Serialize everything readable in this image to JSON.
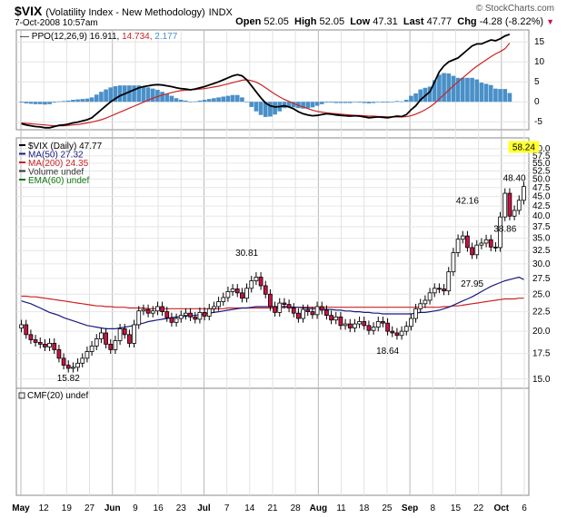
{
  "header": {
    "symbol": "$VIX",
    "name": "(Volatility Index - New Methodology)",
    "exchange": "INDX",
    "date": "7-Oct-2008 10:57am",
    "brand": "© StockCharts.com",
    "open_label": "Open",
    "open": "52.05",
    "high_label": "High",
    "high": "52.05",
    "low_label": "Low",
    "low": "47.31",
    "last_label": "Last",
    "last": "47.77",
    "chg_label": "Chg",
    "chg": "-4.28 (-8.22%)"
  },
  "ppo_legend": {
    "name": "PPO(12,26,9)",
    "v1": "16.911",
    "v2": "14.734",
    "v3": "2.177"
  },
  "price_legend": [
    {
      "text": "$VIX (Daily) 47.77",
      "color": "#000000"
    },
    {
      "text": "MA(50) 27.32",
      "color": "#1a1a80"
    },
    {
      "text": "MA(200) 24.35",
      "color": "#cc2222"
    },
    {
      "text": "Volume undef",
      "color": "#333333"
    },
    {
      "text": "EMA(60) undef",
      "color": "#117711"
    }
  ],
  "cmf_legend": "CMF(20) undef",
  "colors": {
    "up": "#ffffff",
    "down": "#cc1144",
    "ma50": "#1a1a80",
    "ma200": "#cc2222",
    "hist": "#4a90c8",
    "ppo": "#000000",
    "signal": "#cc2222",
    "highlight": "#ffff33"
  },
  "chart_data": [
    {
      "type": "line",
      "title": "PPO(12,26,9)",
      "y_ticks": [
        "15",
        "10",
        "5",
        "0",
        "-5"
      ],
      "ylim": [
        -7,
        18
      ],
      "series": [
        {
          "name": "PPO(12,26,9)",
          "values": [
            -5.5,
            -5.8,
            -6.0,
            -6.2,
            -6.3,
            -6.5,
            -6.5,
            -6.2,
            -5.9,
            -5.8,
            -5.6,
            -5.3,
            -5.1,
            -4.8,
            -4.5,
            -4.0,
            -3.0,
            -2.0,
            -1.0,
            0.0,
            0.8,
            1.5,
            2.0,
            2.5,
            3.0,
            3.5,
            3.8,
            4.0,
            4.2,
            4.3,
            4.2,
            4.0,
            3.8,
            3.5,
            3.3,
            3.2,
            3.0,
            3.2,
            3.5,
            3.8,
            4.2,
            4.6,
            5.0,
            5.5,
            6.0,
            6.5,
            6.8,
            6.5,
            5.5,
            4.0,
            2.5,
            1.0,
            -0.3,
            -1.0,
            -1.3,
            -1.2,
            -1.0,
            -1.3,
            -1.8,
            -2.5,
            -3.0,
            -3.3,
            -3.5,
            -3.4,
            -3.2,
            -3.0,
            -3.1,
            -3.3,
            -3.4,
            -3.5,
            -3.6,
            -3.5,
            -3.6,
            -3.8,
            -4.0,
            -3.9,
            -3.8,
            -3.9,
            -4.0,
            -3.8,
            -3.6,
            -3.7,
            -3.2,
            -2.0,
            -1.0,
            0.5,
            1.5,
            2.5,
            5.0,
            7.5,
            9.0,
            10.0,
            10.5,
            11.0,
            12.0,
            13.0,
            14.0,
            14.5,
            14.5,
            15.0,
            15.5,
            15.3,
            15.8,
            16.5,
            16.9
          ]
        },
        {
          "name": "Signal",
          "values": [
            -5.3,
            -5.4,
            -5.5,
            -5.6,
            -5.7,
            -5.8,
            -5.9,
            -6.0,
            -6.0,
            -6.0,
            -5.9,
            -5.8,
            -5.7,
            -5.5,
            -5.3,
            -5.1,
            -4.8,
            -4.5,
            -4.1,
            -3.6,
            -3.1,
            -2.6,
            -2.1,
            -1.6,
            -1.1,
            -0.6,
            -0.1,
            0.4,
            0.9,
            1.3,
            1.7,
            2.0,
            2.3,
            2.6,
            2.8,
            2.9,
            3.0,
            3.1,
            3.2,
            3.3,
            3.5,
            3.7,
            3.9,
            4.2,
            4.5,
            4.8,
            5.1,
            5.4,
            5.5,
            5.3,
            4.9,
            4.3,
            3.5,
            2.7,
            1.9,
            1.2,
            0.6,
            0.1,
            -0.4,
            -0.9,
            -1.3,
            -1.7,
            -2.1,
            -2.4,
            -2.6,
            -2.8,
            -2.9,
            -3.0,
            -3.1,
            -3.2,
            -3.3,
            -3.4,
            -3.4,
            -3.5,
            -3.6,
            -3.6,
            -3.7,
            -3.7,
            -3.8,
            -3.8,
            -3.8,
            -3.8,
            -3.7,
            -3.5,
            -3.1,
            -2.6,
            -2.0,
            -1.3,
            -0.4,
            0.7,
            1.8,
            2.9,
            4.0,
            5.0,
            6.0,
            7.0,
            8.0,
            8.9,
            9.7,
            10.5,
            11.3,
            12.0,
            12.6,
            13.3,
            14.7
          ]
        },
        {
          "name": "Histogram",
          "values": [
            -0.2,
            -0.4,
            -0.5,
            -0.6,
            -0.6,
            -0.7,
            -0.6,
            -0.2,
            0.1,
            0.2,
            0.3,
            0.5,
            0.6,
            0.7,
            0.8,
            1.1,
            1.8,
            2.5,
            3.1,
            3.6,
            3.9,
            4.1,
            4.1,
            4.1,
            4.1,
            4.1,
            3.9,
            3.6,
            3.3,
            3.0,
            2.5,
            2.0,
            1.5,
            0.9,
            0.5,
            0.3,
            0.0,
            0.1,
            0.3,
            0.5,
            0.7,
            0.9,
            1.1,
            1.3,
            1.5,
            1.7,
            1.7,
            1.1,
            0.0,
            -1.3,
            -2.4,
            -3.3,
            -3.8,
            -3.7,
            -3.2,
            -2.4,
            -1.6,
            -1.4,
            -1.4,
            -1.6,
            -1.7,
            -1.6,
            -1.4,
            -1.0,
            -0.6,
            -0.2,
            -0.2,
            -0.3,
            -0.3,
            -0.3,
            -0.3,
            -0.1,
            -0.2,
            -0.3,
            -0.4,
            -0.3,
            -0.1,
            -0.2,
            -0.2,
            0.0,
            0.2,
            0.1,
            0.5,
            1.5,
            2.1,
            3.1,
            3.5,
            3.8,
            5.4,
            6.8,
            7.2,
            7.1,
            6.5,
            6.0,
            6.0,
            6.0,
            6.0,
            5.6,
            4.8,
            4.5,
            4.2,
            3.3,
            3.2,
            3.2,
            2.2
          ]
        }
      ]
    },
    {
      "type": "candlestick",
      "title": "$VIX (Daily) 47.77",
      "y_scale": "log",
      "y_ticks": [
        "60.0",
        "57.5",
        "55.0",
        "52.5",
        "50.0",
        "47.5",
        "45.0",
        "42.5",
        "40.0",
        "37.5",
        "35.0",
        "32.5",
        "30.0",
        "27.5",
        "25.0",
        "22.5",
        "20.0",
        "17.5",
        "15.0"
      ],
      "ylim": [
        14.5,
        62
      ],
      "x_ticks": [
        "May",
        "12",
        "19",
        "27",
        "Jun",
        "9",
        "16",
        "23",
        "Jul",
        "7",
        "14",
        "21",
        "28",
        "Aug",
        "11",
        "18",
        "25",
        "Sep",
        "8",
        "15",
        "22",
        "Oct",
        "6"
      ],
      "close": [
        20.8,
        19.6,
        19.0,
        18.7,
        18.5,
        18.2,
        18.6,
        17.9,
        17.0,
        16.3,
        16.0,
        16.1,
        16.5,
        17.0,
        17.7,
        18.3,
        19.1,
        19.8,
        18.5,
        17.9,
        18.9,
        20.3,
        19.6,
        18.6,
        20.8,
        22.6,
        22.8,
        22.3,
        22.6,
        23.2,
        22.5,
        21.7,
        21.1,
        21.6,
        22.0,
        22.3,
        21.8,
        21.5,
        22.4,
        21.9,
        22.9,
        23.2,
        23.9,
        24.5,
        25.4,
        25.8,
        25.2,
        24.4,
        25.9,
        27.1,
        27.7,
        26.3,
        25.0,
        23.2,
        22.4,
        23.7,
        23.5,
        23.0,
        22.3,
        21.6,
        22.8,
        22.5,
        22.1,
        23.2,
        22.7,
        22.0,
        21.4,
        21.8,
        20.7,
        20.9,
        20.4,
        20.9,
        21.2,
        20.7,
        20.1,
        20.5,
        21.2,
        21.0,
        20.0,
        19.8,
        19.5,
        20.0,
        20.6,
        21.6,
        22.9,
        23.6,
        24.1,
        25.2,
        25.9,
        25.8,
        25.5,
        28.6,
        32.1,
        34.8,
        35.5,
        33.1,
        31.7,
        33.6,
        34.0,
        34.7,
        33.2,
        33.1,
        39.8,
        45.9,
        40.0,
        41.4,
        44.0,
        47.8
      ],
      "annotations": [
        {
          "text": "15.82",
          "index": 10,
          "value": 15.82
        },
        {
          "text": "30.81",
          "index": 48,
          "value": 30.81
        },
        {
          "text": "18.64",
          "index": 78,
          "value": 18.64
        },
        {
          "text": "42.16",
          "index": 95,
          "value": 42.16
        },
        {
          "text": "27.95",
          "index": 96,
          "value": 27.95
        },
        {
          "text": "38.86",
          "index": 103,
          "value": 38.86
        },
        {
          "text": "48.40",
          "index": 105,
          "value": 48.4
        },
        {
          "text": "58.24",
          "index": 107,
          "value": 58.24
        }
      ],
      "series": [
        {
          "name": "MA(50) 27.32",
          "values": [
            24.0,
            23.8,
            23.6,
            23.3,
            23.0,
            22.7,
            22.4,
            22.2,
            22.0,
            21.7,
            21.5,
            21.3,
            21.1,
            20.9,
            20.7,
            20.6,
            20.5,
            20.4,
            20.3,
            20.3,
            20.3,
            20.4,
            20.5,
            20.6,
            20.7,
            20.9,
            21.0,
            21.2,
            21.3,
            21.4,
            21.5,
            21.6,
            21.7,
            21.8,
            21.8,
            21.9,
            22.0,
            22.0,
            22.1,
            22.2,
            22.3,
            22.4,
            22.5,
            22.6,
            22.7,
            22.8,
            22.9,
            23.0,
            23.0,
            23.1,
            23.2,
            23.2,
            23.2,
            23.2,
            23.2,
            23.2,
            23.2,
            23.2,
            23.1,
            23.1,
            23.0,
            23.0,
            22.9,
            22.9,
            22.9,
            22.8,
            22.8,
            22.7,
            22.7,
            22.6,
            22.6,
            22.5,
            22.5,
            22.4,
            22.4,
            22.3,
            22.3,
            22.2,
            22.2,
            22.2,
            22.2,
            22.2,
            22.2,
            22.2,
            22.3,
            22.4,
            22.4,
            22.5,
            22.6,
            22.7,
            22.9,
            23.1,
            23.4,
            23.7,
            24.0,
            24.3,
            24.6,
            25.0,
            25.4,
            25.8,
            26.2,
            26.5,
            26.8,
            27.1,
            27.3,
            27.5,
            27.7,
            27.3
          ]
        },
        {
          "name": "MA(200) 24.35",
          "values": [
            24.7,
            24.7,
            24.6,
            24.6,
            24.5,
            24.4,
            24.3,
            24.2,
            24.1,
            24.0,
            23.9,
            23.8,
            23.7,
            23.6,
            23.5,
            23.4,
            23.3,
            23.3,
            23.2,
            23.2,
            23.1,
            23.1,
            23.1,
            23.0,
            23.0,
            23.0,
            23.0,
            22.9,
            22.9,
            22.9,
            22.9,
            22.9,
            22.9,
            22.9,
            22.9,
            22.9,
            22.9,
            22.9,
            22.9,
            22.9,
            22.9,
            22.9,
            22.9,
            22.9,
            23.0,
            23.0,
            23.0,
            23.0,
            23.0,
            23.0,
            23.0,
            23.0,
            23.0,
            23.0,
            23.0,
            23.0,
            23.1,
            23.1,
            23.1,
            23.1,
            23.1,
            23.1,
            23.1,
            23.1,
            23.1,
            23.1,
            23.1,
            23.1,
            23.1,
            23.1,
            23.1,
            23.1,
            23.1,
            23.1,
            23.1,
            23.1,
            23.1,
            23.1,
            23.1,
            23.1,
            23.1,
            23.1,
            23.1,
            23.1,
            23.1,
            23.1,
            23.1,
            23.1,
            23.1,
            23.1,
            23.2,
            23.2,
            23.3,
            23.3,
            23.4,
            23.5,
            23.6,
            23.7,
            23.8,
            23.9,
            24.0,
            24.1,
            24.2,
            24.3,
            24.3,
            24.3,
            24.4,
            24.4
          ]
        }
      ]
    },
    {
      "type": "line",
      "title": "CMF(20) undef",
      "series": []
    }
  ]
}
